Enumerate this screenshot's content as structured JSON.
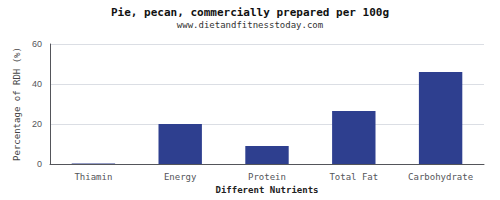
{
  "chart_data": {
    "type": "bar",
    "title": "Pie, pecan, commercially prepared per 100g",
    "subtitle": "www.dietandfitnesstoday.com",
    "xlabel": "Different Nutrients",
    "ylabel": "Percentage of RDH (%)",
    "categories": [
      "Thiamin",
      "Energy",
      "Protein",
      "Total Fat",
      "Carbohydrate"
    ],
    "values": [
      0.3,
      20.0,
      9.0,
      26.5,
      46.0
    ],
    "color": "#2e3f8f",
    "ylim": [
      0,
      60
    ],
    "yticks": [
      0,
      20,
      40,
      60
    ],
    "grid": true
  }
}
